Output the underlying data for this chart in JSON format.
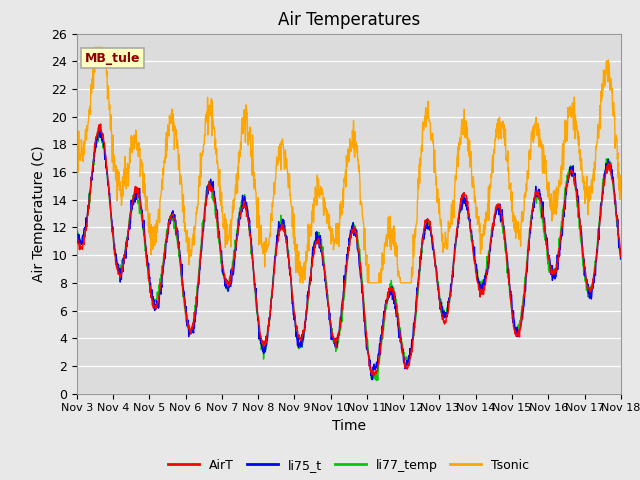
{
  "title": "Air Temperatures",
  "xlabel": "Time",
  "ylabel": "Air Temperature (C)",
  "ylim": [
    0,
    26
  ],
  "yticks": [
    0,
    2,
    4,
    6,
    8,
    10,
    12,
    14,
    16,
    18,
    20,
    22,
    24,
    26
  ],
  "xtick_labels": [
    "Nov 3",
    "Nov 4",
    "Nov 5",
    "Nov 6",
    "Nov 7",
    "Nov 8",
    "Nov 9",
    "Nov 10",
    "Nov 11",
    "Nov 12",
    "Nov 13",
    "Nov 14",
    "Nov 15",
    "Nov 16",
    "Nov 17",
    "Nov 18"
  ],
  "annotation_text": "MB_tule",
  "annotation_color": "#8B0000",
  "annotation_bg": "#FFFFC0",
  "annotation_border": "#AAAAAA",
  "colors": {
    "AirT": "#FF0000",
    "li75_t": "#0000FF",
    "li77_temp": "#00CC00",
    "Tsonic": "#FFA500"
  },
  "line_width": 1.0,
  "fig_bg_color": "#E8E8E8",
  "plot_bg_color": "#DCDCDC",
  "grid_color": "#FFFFFF",
  "title_fontsize": 12,
  "label_fontsize": 10,
  "tick_fontsize": 9
}
